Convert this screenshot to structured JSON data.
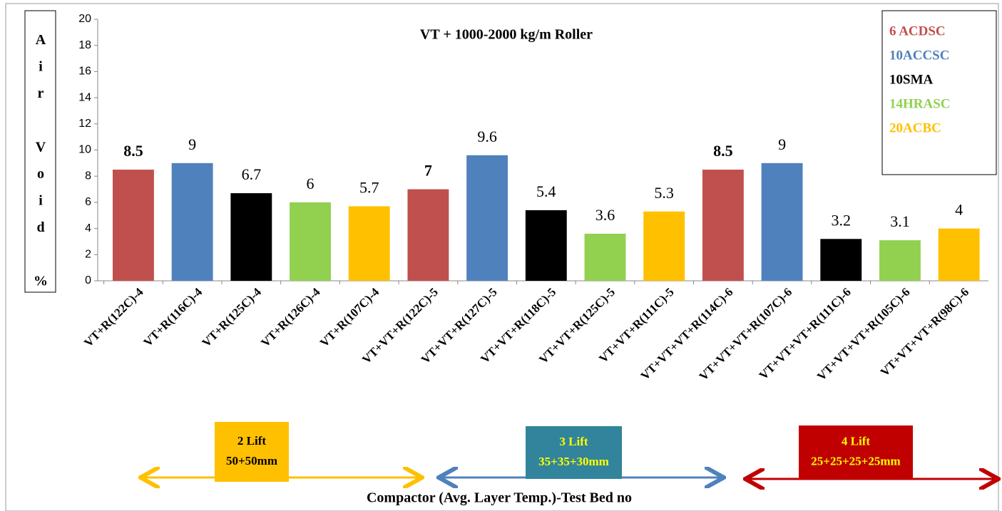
{
  "chart_data": {
    "type": "bar",
    "title": "VT + 1000-2000 kg/m Roller",
    "ylabel": "Air Void %",
    "xlabel": "Compactor (Avg. Layer Temp.)-Test Bed no",
    "categories": [
      "VT+R(122C)-4",
      "VT+R(116C)-4",
      "VT+R(125C)-4",
      "VT+R(126C)-4",
      "VT+R(107C)-4",
      "VT+VT+R(122C)-5",
      "VT+VT+R(127C)-5",
      "VT+VT+R(118C)-5",
      "VT+VT+R(125C)-5",
      "VT+VT+R(111C)-5",
      "VT+VT+VT+R(114C)-6",
      "VT+VT+VT+R(107C)-6",
      "VT+VT+VT+R(111C)-6",
      "VT+VT+VT+R(105C)-6",
      "VT+VT+VT+R(98C)-6"
    ],
    "series": [
      {
        "name": "6 ACDSC",
        "color": "#c0504d",
        "label_weight": "bold",
        "values": [
          8.5,
          null,
          null,
          null,
          null,
          7,
          null,
          null,
          null,
          null,
          8.5,
          null,
          null,
          null,
          null
        ]
      },
      {
        "name": "10ACCSC",
        "color": "#4f81bd",
        "values": [
          null,
          9,
          null,
          null,
          null,
          null,
          9.6,
          null,
          null,
          null,
          null,
          9,
          null,
          null,
          null
        ]
      },
      {
        "name": "10SMA",
        "color": "#000000",
        "values": [
          null,
          null,
          6.7,
          null,
          null,
          null,
          null,
          5.4,
          null,
          null,
          null,
          null,
          3.2,
          null,
          null
        ]
      },
      {
        "name": "14HRASC",
        "color": "#92d050",
        "values": [
          null,
          null,
          null,
          6,
          null,
          null,
          null,
          null,
          3.6,
          null,
          null,
          null,
          null,
          3.1,
          null
        ]
      },
      {
        "name": "20ACBC",
        "color": "#ffc000",
        "values": [
          null,
          null,
          null,
          null,
          5.7,
          null,
          null,
          null,
          null,
          5.3,
          null,
          null,
          null,
          null,
          4
        ]
      }
    ],
    "ylim": [
      0,
      20
    ],
    "yticks": [
      0,
      2,
      4,
      6,
      8,
      10,
      12,
      14,
      16,
      18,
      20
    ],
    "legend": "top-right",
    "annotations": [
      {
        "title": "2 Lift",
        "detail": "50+50mm",
        "color": "#ffc000",
        "text_color": "#000000"
      },
      {
        "title": "3 Lift",
        "detail": "35+35+30mm",
        "color": "#31849b",
        "text_color": "#ffff00"
      },
      {
        "title": "4 Lift",
        "detail": "25+25+25+25mm",
        "color": "#c00000",
        "text_color": "#ffff00"
      }
    ]
  }
}
